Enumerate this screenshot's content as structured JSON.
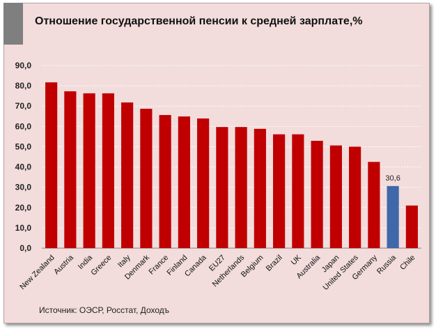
{
  "title": "Отношение государственной пенсии к средней зарплате,%",
  "source": "Источник: ОЭСР, Росстат, Доходъ",
  "colors": {
    "bar": "#c00000",
    "highlight": "#4068a8",
    "background": "#f2dcdc",
    "grid": "#ffffff"
  },
  "chart_data": {
    "type": "bar",
    "title": "Отношение государственной пенсии к средней зарплате,%",
    "categories": [
      "New Zealand",
      "Austria",
      "India",
      "Greece",
      "Italy",
      "Denmark",
      "France",
      "Finland",
      "Canada",
      "EU27",
      "Netherlands",
      "Belgium",
      "Brazil",
      "UK",
      "Australia",
      "Japan",
      "United States",
      "Germany",
      "Russia",
      "Chile"
    ],
    "values": [
      81.7,
      77.3,
      76.3,
      76.3,
      71.8,
      68.7,
      65.6,
      64.9,
      63.9,
      59.7,
      59.7,
      58.8,
      56.1,
      56.1,
      52.9,
      50.6,
      50.0,
      42.5,
      30.6,
      21.0
    ],
    "highlight": "Russia",
    "data_labels": [
      {
        "category": "Russia",
        "text": "30,6"
      }
    ],
    "ylim": [
      0,
      90
    ],
    "yticks": [
      "0,0",
      "10,0",
      "20,0",
      "30,0",
      "40,0",
      "50,0",
      "60,0",
      "70,0",
      "80,0",
      "90,0"
    ],
    "grid": true,
    "xlabel": "",
    "ylabel": ""
  }
}
